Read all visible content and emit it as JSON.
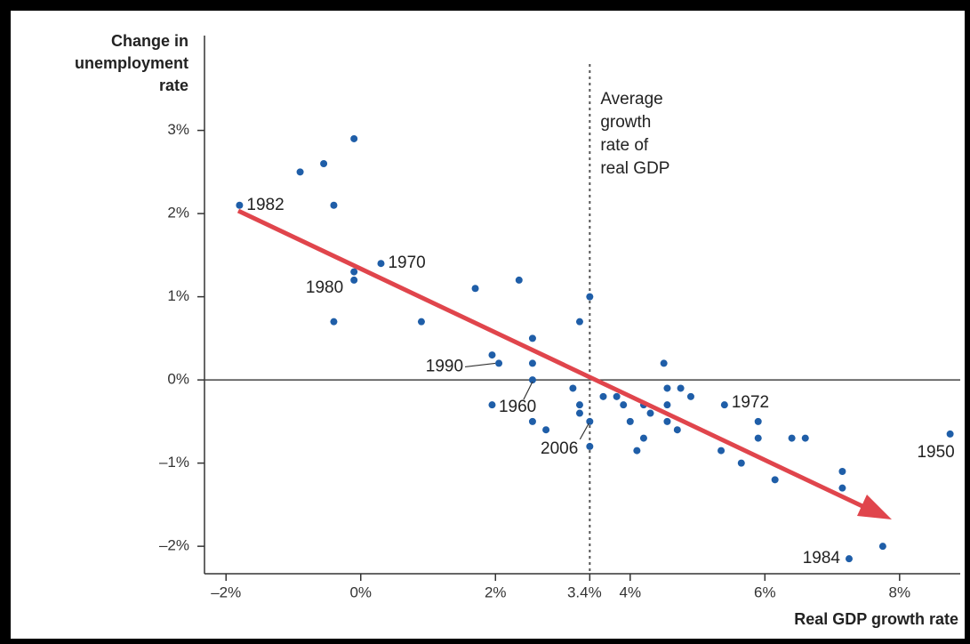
{
  "chart_data": {
    "type": "scatter",
    "y_label": [
      "Change in",
      "unemployment",
      "rate"
    ],
    "x_label": "Real GDP growth rate",
    "xlim": [
      -2.32,
      8.9
    ],
    "ylim": [
      -2.33,
      4.14
    ],
    "xticks": [
      {
        "value": -2,
        "label": "–2%"
      },
      {
        "value": 0,
        "label": "0%"
      },
      {
        "value": 2,
        "label": "2%"
      },
      {
        "value": 3.4,
        "label": "3.4%"
      },
      {
        "value": 4,
        "label": "4%"
      },
      {
        "value": 6,
        "label": "6%"
      },
      {
        "value": 8,
        "label": "8%"
      }
    ],
    "yticks": [
      {
        "value": 3,
        "label": "3%"
      },
      {
        "value": 2,
        "label": "2%"
      },
      {
        "value": 1,
        "label": "1%"
      },
      {
        "value": 0,
        "label": "0%"
      },
      {
        "value": -1,
        "label": "–1%"
      },
      {
        "value": -2,
        "label": "–2%"
      }
    ],
    "reference_line": {
      "x": 3.4,
      "label": [
        "Average",
        "growth",
        "rate of",
        "real GDP"
      ]
    },
    "series": [
      {
        "color": "#1f5ea8",
        "x": [
          -1.8,
          -0.9,
          -0.55,
          -0.1,
          -0.4,
          -0.1,
          -0.1,
          -0.4,
          0.3,
          0.9,
          1.7,
          2.35,
          3.4,
          3.25,
          2.55,
          1.95,
          2.05,
          2.55,
          2.55,
          1.95,
          2.55,
          2.75,
          3.15,
          3.25,
          3.25,
          3.4,
          3.4,
          3.6,
          3.8,
          3.9,
          4.0,
          4.1,
          4.2,
          4.2,
          4.3,
          4.5,
          4.55,
          4.75,
          4.55,
          4.55,
          4.7,
          4.9,
          5.4,
          5.35,
          5.65,
          5.9,
          5.9,
          6.15,
          6.4,
          6.6,
          7.15,
          7.15,
          7.25,
          7.75,
          8.75
        ],
        "values": [
          2.1,
          2.5,
          2.6,
          2.9,
          2.1,
          1.3,
          1.2,
          0.7,
          1.4,
          0.7,
          1.1,
          1.2,
          1.0,
          0.7,
          0.5,
          0.3,
          0.2,
          0.2,
          0.0,
          -0.3,
          -0.5,
          -0.6,
          -0.1,
          -0.3,
          -0.4,
          -0.5,
          -0.8,
          -0.2,
          -0.2,
          -0.3,
          -0.5,
          -0.85,
          -0.7,
          -0.3,
          -0.4,
          0.2,
          -0.1,
          -0.1,
          -0.3,
          -0.5,
          -0.6,
          -0.2,
          -0.3,
          -0.85,
          -1.0,
          -0.5,
          -0.7,
          -1.2,
          -0.7,
          -0.7,
          -1.1,
          -1.3,
          -2.15,
          -2.0,
          -0.65
        ],
        "point_labels": [
          "1982",
          null,
          null,
          null,
          null,
          null,
          "1980",
          null,
          "1970",
          null,
          null,
          null,
          null,
          null,
          null,
          null,
          "1990",
          null,
          "1960",
          null,
          null,
          null,
          null,
          null,
          null,
          "2006",
          null,
          null,
          null,
          null,
          null,
          null,
          null,
          null,
          null,
          null,
          null,
          null,
          null,
          null,
          null,
          null,
          "1972",
          null,
          null,
          null,
          null,
          null,
          null,
          null,
          null,
          null,
          "1984",
          null,
          "1950"
        ]
      }
    ]
  }
}
